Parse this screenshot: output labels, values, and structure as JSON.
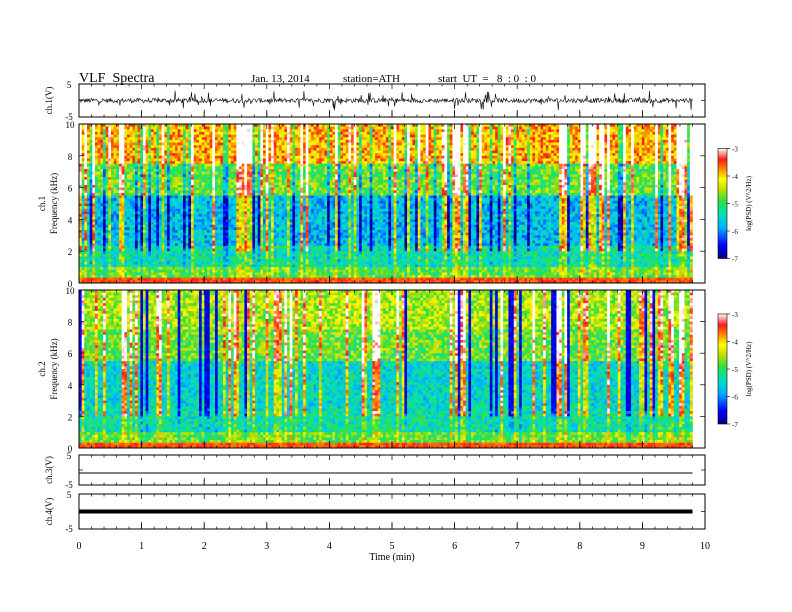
{
  "header": {
    "title": "VLF  Spectra",
    "date": "Jan. 13, 2014",
    "station": "station=ATH",
    "start": "start  UT  =   8  : 0  : 0"
  },
  "chart_data": [
    {
      "type": "line",
      "panel": "ch1-waveform",
      "ylabel": "ch.1(V)",
      "ylim": [
        -5,
        5
      ],
      "yticks": [
        "5",
        "-5"
      ],
      "x_range_min": [
        0,
        9.8
      ],
      "description_level": "noisy signal around 0 V, spikes to about +/-3 V"
    },
    {
      "type": "heatmap",
      "panel": "ch1-spectrogram",
      "ylabel": "ch.1\nFrequency (kHz)",
      "ylim": [
        0,
        10
      ],
      "yticks": [
        "0",
        "2",
        "4",
        "6",
        "8",
        "10"
      ],
      "colorbar": {
        "label": "log(PSD) (V^2/Hz)",
        "range": [
          -7,
          -3
        ],
        "ticks": [
          "-3",
          "-4",
          "-5",
          "-6",
          "-7"
        ]
      }
    },
    {
      "type": "heatmap",
      "panel": "ch2-spectrogram",
      "ylabel": "ch.2\nFrequency (kHz)",
      "ylim": [
        0,
        10
      ],
      "yticks": [
        "0",
        "2",
        "4",
        "6",
        "8",
        "10"
      ],
      "colorbar": {
        "label": "log(PSD) (V^2/Hz)",
        "range": [
          -7,
          -3
        ],
        "ticks": [
          "-3",
          "-4",
          "-5",
          "-6",
          "-7"
        ]
      }
    },
    {
      "type": "line",
      "panel": "ch3-waveform",
      "ylabel": "ch.3(V)",
      "ylim": [
        -5,
        5
      ],
      "yticks": [
        "5",
        "-5"
      ],
      "level": -1
    },
    {
      "type": "line",
      "panel": "ch4-waveform",
      "ylabel": "ch.4(V)",
      "ylim": [
        -5,
        5
      ],
      "yticks": [
        "5",
        "-5"
      ],
      "level": 0
    }
  ],
  "axis_x": {
    "label": "Time  (min)",
    "range": [
      0,
      10
    ],
    "ticks": [
      "0",
      "1",
      "2",
      "3",
      "4",
      "5",
      "6",
      "7",
      "8",
      "9",
      "10"
    ]
  },
  "colors": {
    "stops": [
      "#000080",
      "#0000ff",
      "#00a0ff",
      "#00e0e0",
      "#00d080",
      "#40e040",
      "#c0e000",
      "#ffff00",
      "#ff9000",
      "#ff2000",
      "#ffffff"
    ]
  }
}
